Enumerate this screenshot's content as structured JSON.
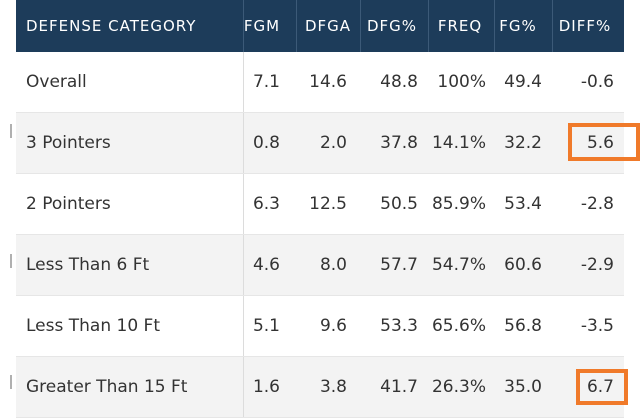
{
  "table": {
    "columns": [
      "DEFENSE CATEGORY",
      "FGM",
      "DFGA",
      "DFG%",
      "FREQ",
      "FG%",
      "DIFF%"
    ],
    "rows": [
      {
        "category": "Overall",
        "fgm": "7.1",
        "dfga": "14.6",
        "dfg": "48.8",
        "freq": "100%",
        "fg": "49.4",
        "diff": "-0.6",
        "highlight": false
      },
      {
        "category": "3 Pointers",
        "fgm": "0.8",
        "dfga": "2.0",
        "dfg": "37.8",
        "freq": "14.1%",
        "fg": "32.2",
        "diff": "5.6",
        "highlight": true
      },
      {
        "category": "2 Pointers",
        "fgm": "6.3",
        "dfga": "12.5",
        "dfg": "50.5",
        "freq": "85.9%",
        "fg": "53.4",
        "diff": "-2.8",
        "highlight": false
      },
      {
        "category": "Less Than 6 Ft",
        "fgm": "4.6",
        "dfga": "8.0",
        "dfg": "57.7",
        "freq": "54.7%",
        "fg": "60.6",
        "diff": "-2.9",
        "highlight": false
      },
      {
        "category": "Less Than 10 Ft",
        "fgm": "5.1",
        "dfga": "9.6",
        "dfg": "53.3",
        "freq": "65.6%",
        "fg": "56.8",
        "diff": "-3.5",
        "highlight": false
      },
      {
        "category": "Greater Than 15 Ft",
        "fgm": "1.6",
        "dfga": "3.8",
        "dfg": "41.7",
        "freq": "26.3%",
        "fg": "35.0",
        "diff": "6.7",
        "highlight": true
      }
    ]
  },
  "colors": {
    "header_bg": "#1d3c5a",
    "highlight_box": "#f07a2a",
    "alt_row_bg": "#f3f3f3"
  }
}
